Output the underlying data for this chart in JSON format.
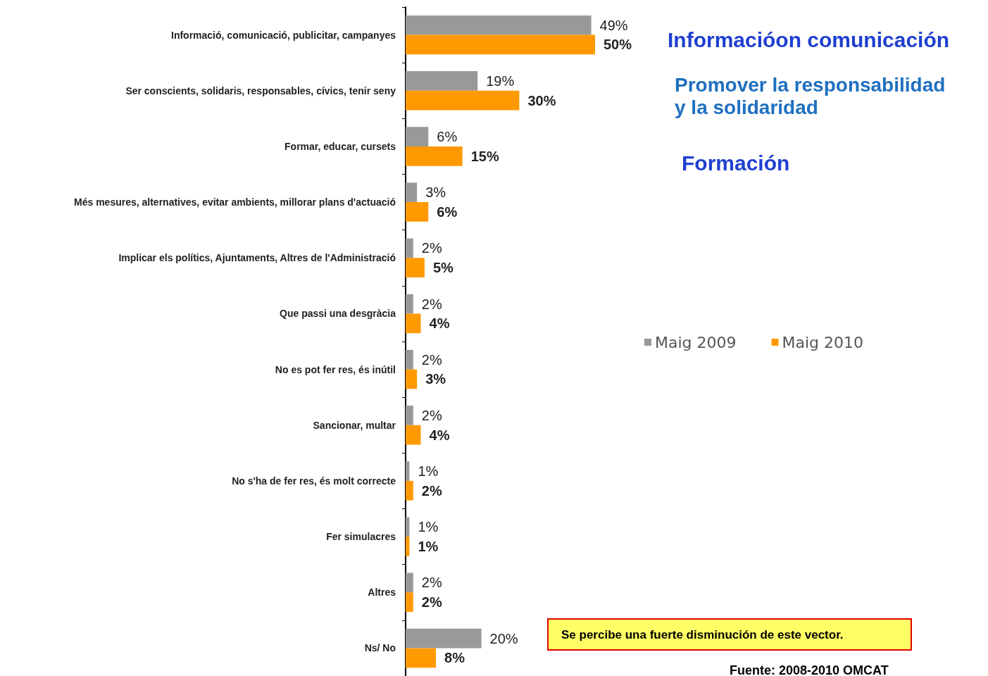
{
  "chart_data": {
    "type": "bar",
    "orientation": "horizontal",
    "categories": [
      "Informació, comunicació, publicitar, campanyes",
      "Ser conscients, solidaris, responsables, cívics, tenir seny",
      "Formar, educar, cursets",
      "Més mesures, alternatives, evitar ambients, millorar plans d'actuació",
      "Implicar els polítics, Ajuntaments, Altres de l'Administració",
      "Que passi una desgràcia",
      "No es pot fer res, és inútil",
      "Sancionar, multar",
      "No s'ha de fer res, és molt correcte",
      "Fer simulacres",
      "Altres",
      "Ns/ No"
    ],
    "series": [
      {
        "name": "Maig 2009",
        "color": "#999999",
        "values": [
          49,
          19,
          6,
          3,
          2,
          2,
          2,
          2,
          1,
          1,
          2,
          20
        ],
        "value_labels": [
          "49%",
          "19%",
          "6%",
          "3%",
          "2%",
          "2%",
          "2%",
          "2%",
          "1%",
          "1%",
          "2%",
          "20%"
        ]
      },
      {
        "name": "Maig 2010",
        "color": "#ff9900",
        "values": [
          50,
          30,
          15,
          6,
          5,
          4,
          3,
          4,
          2,
          1,
          2,
          8
        ],
        "value_labels": [
          "50%",
          "30%",
          "15%",
          "6%",
          "5%",
          "4%",
          "3%",
          "4%",
          "2%",
          "1%",
          "2%",
          "8%"
        ]
      }
    ],
    "legend": "right",
    "annotations": [
      "Informacióon comunicación",
      "Promover la responsabilidad y la solidaridad",
      "Formación",
      "Se percibe una fuerte disminución de este vector.",
      "Fuente: 2008-2010 OMCAT"
    ]
  }
}
